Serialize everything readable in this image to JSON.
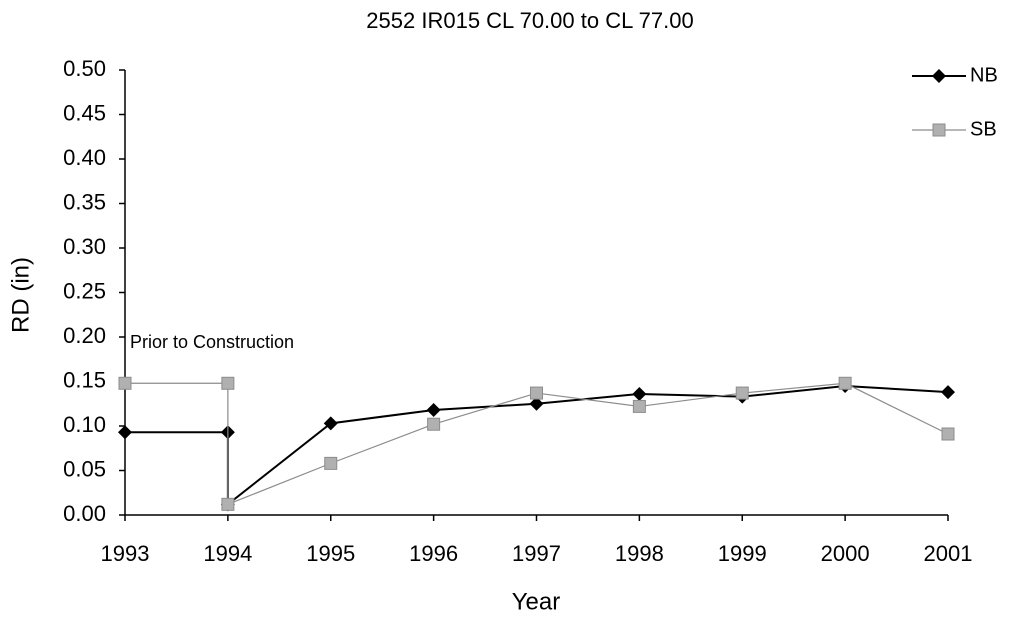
{
  "chart_data": {
    "type": "line",
    "title": "2552 IR015 CL 70.00 to CL 77.00",
    "x_label": "Year",
    "y_label": "RD (in)",
    "annotation": "Prior to Construction",
    "x": [
      1993,
      1994,
      1994,
      1995,
      1996,
      1997,
      1998,
      1999,
      2000,
      2001
    ],
    "series": [
      {
        "name": "NB",
        "color": "#000000",
        "marker": "diamond",
        "values": [
          0.093,
          0.093,
          0.012,
          0.103,
          0.118,
          0.125,
          0.136,
          0.133,
          0.145,
          0.138
        ]
      },
      {
        "name": "SB",
        "color": "#8c8c8c",
        "marker": "square",
        "values": [
          0.148,
          0.148,
          0.012,
          0.058,
          0.102,
          0.137,
          0.122,
          0.137,
          0.148,
          0.091
        ]
      }
    ],
    "xlim": [
      1993,
      2001
    ],
    "xticks": [
      1993,
      1994,
      1995,
      1996,
      1997,
      1998,
      1999,
      2000,
      2001
    ],
    "ylim": [
      0,
      0.5
    ],
    "yticks": [
      {
        "value": 0,
        "label": "0.00"
      },
      {
        "value": 0.05,
        "label": "0.05"
      },
      {
        "value": 0.1,
        "label": "0.10"
      },
      {
        "value": 0.15,
        "label": "0.15"
      },
      {
        "value": 0.2,
        "label": "0.20"
      },
      {
        "value": 0.25,
        "label": "0.25"
      },
      {
        "value": 0.3,
        "label": "0.30"
      },
      {
        "value": 0.35,
        "label": "0.35"
      },
      {
        "value": 0.4,
        "label": "0.40"
      },
      {
        "value": 0.45,
        "label": "0.45"
      },
      {
        "value": 0.5,
        "label": "0.50"
      }
    ],
    "grid": false,
    "legend": "top-right"
  }
}
